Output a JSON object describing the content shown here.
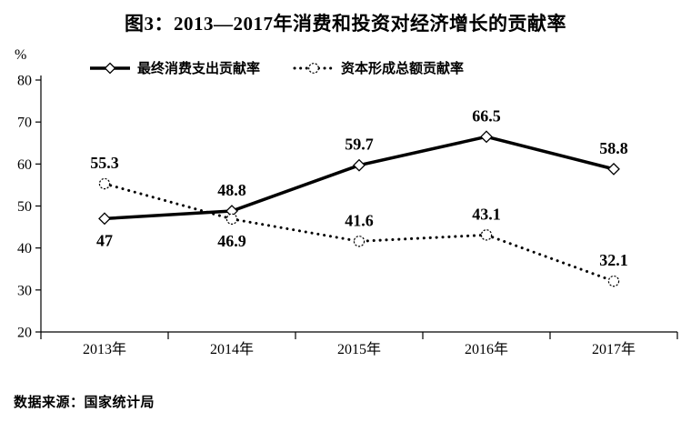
{
  "title": "图3：2013—2017年消费和投资对经济增长的贡献率",
  "y_axis_unit": "%",
  "source_note": "数据来源：国家统计局",
  "colors": {
    "foreground": "#000000",
    "background": "#ffffff"
  },
  "chart_data": {
    "type": "line",
    "categories": [
      "2013年",
      "2014年",
      "2015年",
      "2016年",
      "2017年"
    ],
    "series": [
      {
        "name": "最终消费支出贡献率",
        "line_style": "solid",
        "marker": "diamond",
        "values": [
          47,
          48.8,
          59.7,
          66.5,
          58.8
        ],
        "point_labels": [
          "47",
          "48.8",
          "59.7",
          "66.5",
          "58.8"
        ],
        "label_positions": [
          "below",
          "above",
          "above",
          "above",
          "above"
        ]
      },
      {
        "name": "资本形成总额贡献率",
        "line_style": "dotted",
        "marker": "circle",
        "values": [
          55.3,
          46.9,
          41.6,
          43.1,
          32.1
        ],
        "point_labels": [
          "55.3",
          "46.9",
          "41.6",
          "43.1",
          "32.1"
        ],
        "label_positions": [
          "above",
          "below",
          "above",
          "above",
          "above"
        ]
      }
    ],
    "ylim": [
      20,
      80
    ],
    "yticks": [
      80,
      70,
      60,
      50,
      40,
      30,
      20
    ],
    "grid": false,
    "legend_position": "top"
  }
}
